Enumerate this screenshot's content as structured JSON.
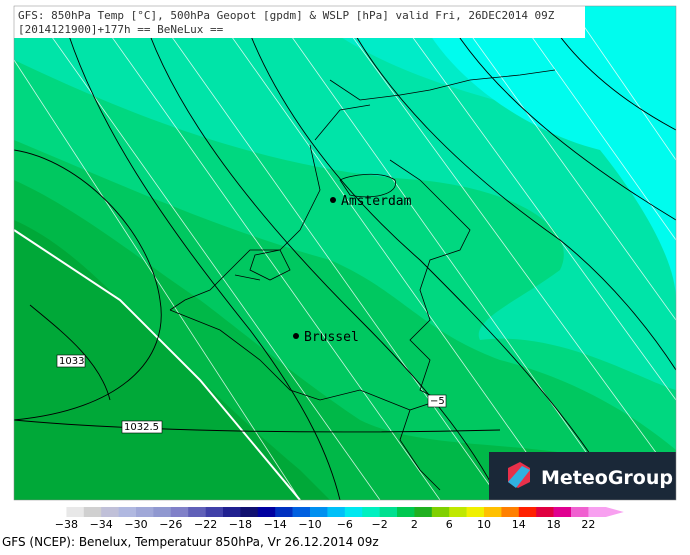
{
  "header": {
    "line1": "GFS: 850hPa Temp [°C], 500hPa Geopot [gpdm] & WSLP [hPa] valid Fri, 26DEC2014 09Z",
    "line2": "[2014121900]+177h  == BeNeLux =="
  },
  "map": {
    "cities": [
      {
        "label": "Amsterdam"
      },
      {
        "label": "Brussel"
      }
    ],
    "isobar_labels": [
      "1033",
      "1032.5"
    ],
    "contour_labels": [
      "−5"
    ]
  },
  "legend": {
    "labels": [
      "−38",
      "−34",
      "−30",
      "−26",
      "−22",
      "−18",
      "−14",
      "−10",
      "−6",
      "−2",
      "2",
      "6",
      "10",
      "14",
      "18",
      "22"
    ],
    "colors": [
      "#ffffff",
      "#e8e8e8",
      "#d0d0d0",
      "#c0c0d8",
      "#b0b8e0",
      "#a0a8d8",
      "#9098d0",
      "#8080c8",
      "#6060b8",
      "#4040a8",
      "#202090",
      "#101070",
      "#0000a0",
      "#0030c0",
      "#0060e0",
      "#0090f0",
      "#00c0f8",
      "#00e8f0",
      "#00f0c0",
      "#00e090",
      "#00c850",
      "#20b020",
      "#80d000",
      "#c0e800",
      "#f0f000",
      "#ffc000",
      "#ff8000",
      "#ff2000",
      "#e00040",
      "#e00090",
      "#f060d0",
      "#f8a0f0"
    ]
  },
  "footer": "GFS (NCEP): Benelux, Temperatuur 850hPa, Vr 26.12.2014 09z",
  "logo": "MeteoGroup"
}
